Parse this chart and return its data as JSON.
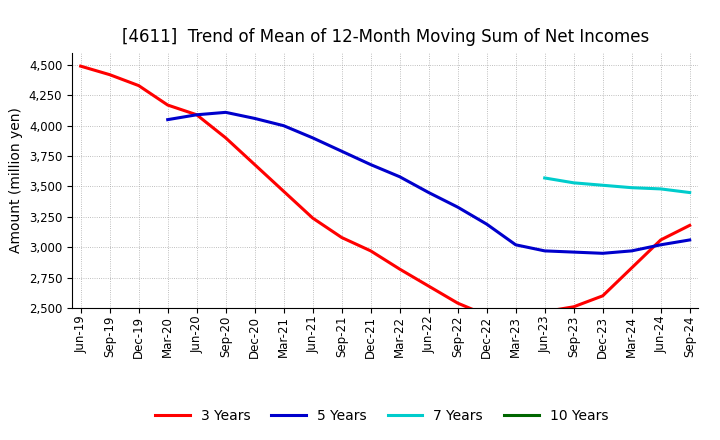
{
  "title": "[4611]  Trend of Mean of 12-Month Moving Sum of Net Incomes",
  "ylabel": "Amount (million yen)",
  "background_color": "#ffffff",
  "plot_bg_color": "#ffffff",
  "grid_color": "#aaaaaa",
  "ylim": [
    2500,
    4600
  ],
  "yticks": [
    2500,
    2750,
    3000,
    3250,
    3500,
    3750,
    4000,
    4250,
    4500
  ],
  "x_labels": [
    "Jun-19",
    "Sep-19",
    "Dec-19",
    "Mar-20",
    "Jun-20",
    "Sep-20",
    "Dec-20",
    "Mar-21",
    "Jun-21",
    "Sep-21",
    "Dec-21",
    "Mar-22",
    "Jun-22",
    "Sep-22",
    "Dec-22",
    "Mar-23",
    "Jun-23",
    "Sep-23",
    "Dec-23",
    "Mar-24",
    "Jun-24",
    "Sep-24"
  ],
  "series_3y": [
    4490,
    4420,
    4330,
    4170,
    4090,
    3900,
    3680,
    3460,
    3240,
    3080,
    2970,
    2820,
    2680,
    2540,
    2440,
    2430,
    2470,
    2510,
    2600,
    2830,
    3060,
    3180
  ],
  "series_5y": [
    null,
    null,
    null,
    4050,
    4090,
    4110,
    4060,
    4000,
    3900,
    3790,
    3680,
    3580,
    3450,
    3330,
    3190,
    3020,
    2970,
    2960,
    2950,
    2970,
    3020,
    3060
  ],
  "series_7y": [
    null,
    null,
    null,
    null,
    null,
    null,
    null,
    null,
    null,
    null,
    null,
    null,
    null,
    null,
    null,
    null,
    3570,
    3530,
    3510,
    3490,
    3480,
    3450
  ],
  "series_10y": [
    null,
    null,
    null,
    null,
    null,
    null,
    null,
    null,
    null,
    null,
    null,
    null,
    null,
    null,
    null,
    null,
    null,
    null,
    null,
    null,
    null,
    null
  ],
  "color_3y": "#ff0000",
  "color_5y": "#0000cc",
  "color_7y": "#00cccc",
  "color_10y": "#006600",
  "linewidth": 2.2,
  "title_fontsize": 12,
  "label_fontsize": 10,
  "tick_fontsize": 8.5
}
